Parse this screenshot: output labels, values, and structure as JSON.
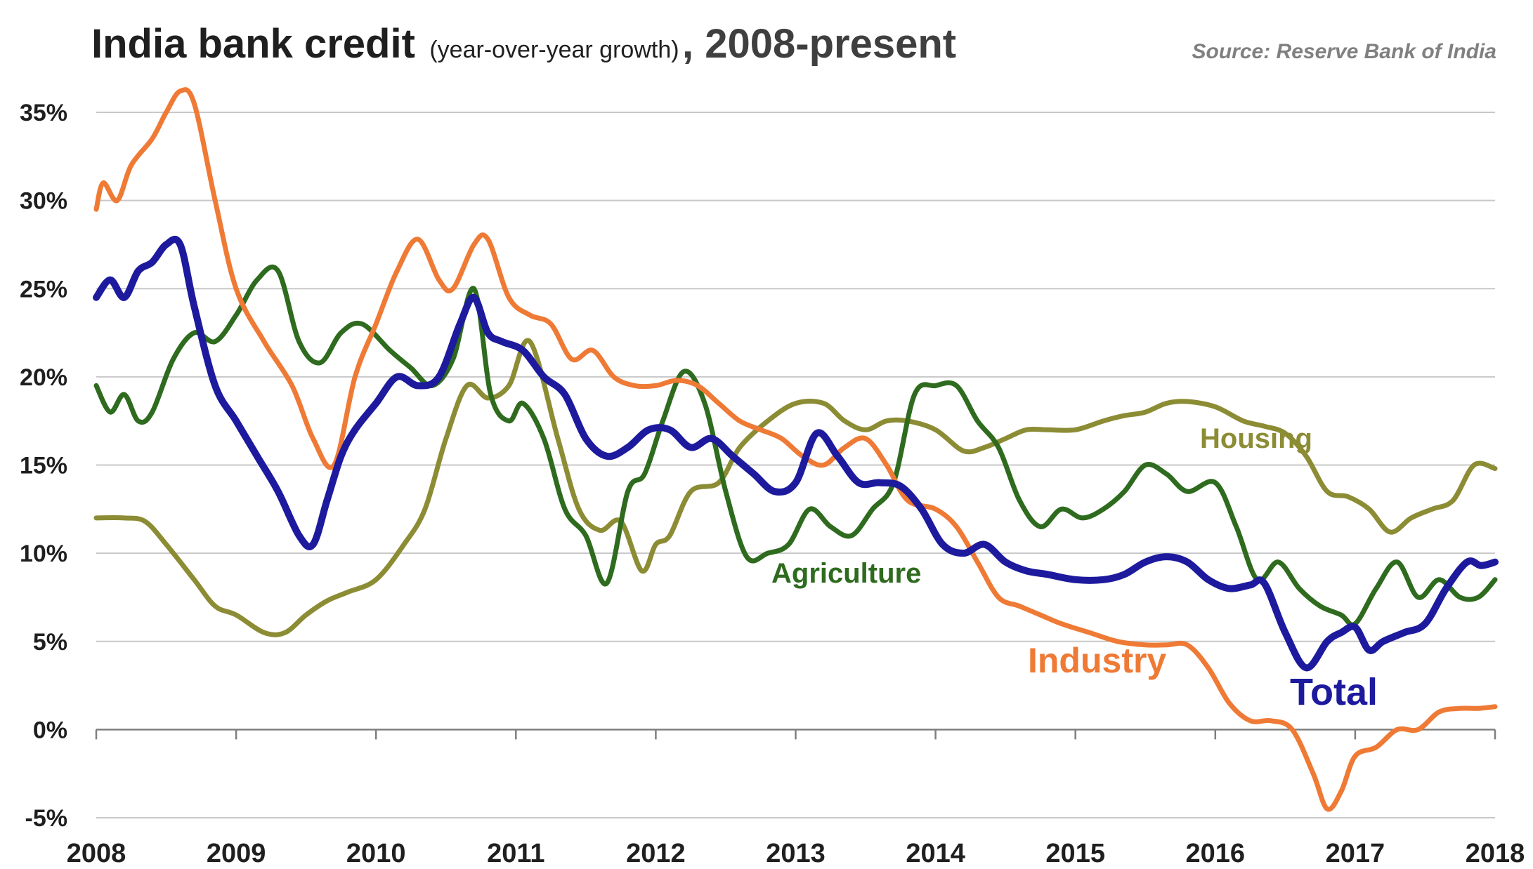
{
  "chart_data": {
    "type": "line",
    "title": "India bank credit",
    "subtitle": "(year-over-year growth)",
    "title_suffix": ", 2008-present",
    "source": "Source: Reserve Bank of India",
    "xlabel": "",
    "ylabel": "",
    "xlim": [
      2008,
      2018
    ],
    "ylim": [
      -5,
      35
    ],
    "grid": "horizontal",
    "legend": "inline labels",
    "y_ticks": [
      35,
      30,
      25,
      20,
      15,
      10,
      5,
      0,
      -5
    ],
    "y_tick_labels": [
      "35%",
      "30%",
      "25%",
      "20%",
      "15%",
      "10%",
      "5%",
      "0%",
      "-5%"
    ],
    "x_ticks": [
      2008,
      2009,
      2010,
      2011,
      2012,
      2013,
      2014,
      2015,
      2016,
      2017,
      2018
    ],
    "x_tick_labels": [
      "2008",
      "2009",
      "2010",
      "2011",
      "2012",
      "2013",
      "2014",
      "2015",
      "2016",
      "2017",
      "2018"
    ],
    "series": [
      {
        "name": "Housing",
        "color": "#8c8c35",
        "x": [
          2008.0,
          2008.2,
          2008.35,
          2008.5,
          2008.7,
          2008.85,
          2009.0,
          2009.2,
          2009.35,
          2009.5,
          2009.65,
          2009.8,
          2010.0,
          2010.2,
          2010.35,
          2010.5,
          2010.65,
          2010.8,
          2010.95,
          2011.1,
          2011.3,
          2011.45,
          2011.6,
          2011.75,
          2011.9,
          2012.0,
          2012.1,
          2012.25,
          2012.45,
          2012.6,
          2012.8,
          2013.0,
          2013.2,
          2013.35,
          2013.5,
          2013.65,
          2013.8,
          2014.0,
          2014.2,
          2014.35,
          2014.5,
          2014.65,
          2014.8,
          2015.0,
          2015.2,
          2015.35,
          2015.5,
          2015.65,
          2015.8,
          2016.0,
          2016.2,
          2016.35,
          2016.5,
          2016.65,
          2016.8,
          2016.95,
          2017.1,
          2017.25,
          2017.4,
          2017.55,
          2017.7,
          2017.85,
          2018.0
        ],
        "values": [
          12.0,
          12.0,
          11.8,
          10.5,
          8.5,
          7.0,
          6.5,
          5.5,
          5.5,
          6.5,
          7.3,
          7.8,
          8.5,
          10.5,
          12.5,
          16.5,
          19.5,
          18.8,
          19.5,
          22.0,
          16.5,
          12.5,
          11.3,
          11.8,
          9.0,
          10.5,
          11.0,
          13.5,
          14.0,
          16.0,
          17.5,
          18.5,
          18.5,
          17.5,
          17.0,
          17.5,
          17.5,
          17.0,
          15.8,
          16.0,
          16.5,
          17.0,
          17.0,
          17.0,
          17.5,
          17.8,
          18.0,
          18.5,
          18.6,
          18.3,
          17.5,
          17.2,
          16.8,
          15.5,
          13.5,
          13.2,
          12.5,
          11.2,
          12.0,
          12.5,
          13.0,
          15.0,
          14.8
        ]
      },
      {
        "name": "Agriculture",
        "color": "#2e6b1e",
        "x": [
          2008.0,
          2008.1,
          2008.2,
          2008.3,
          2008.4,
          2008.55,
          2008.7,
          2008.85,
          2009.0,
          2009.15,
          2009.3,
          2009.45,
          2009.6,
          2009.75,
          2009.9,
          2010.1,
          2010.25,
          2010.4,
          2010.55,
          2010.7,
          2010.82,
          2010.95,
          2011.05,
          2011.2,
          2011.35,
          2011.5,
          2011.65,
          2011.8,
          2011.92,
          2012.05,
          2012.2,
          2012.35,
          2012.5,
          2012.65,
          2012.8,
          2012.95,
          2013.1,
          2013.25,
          2013.4,
          2013.55,
          2013.7,
          2013.85,
          2014.0,
          2014.15,
          2014.3,
          2014.45,
          2014.6,
          2014.75,
          2014.9,
          2015.05,
          2015.2,
          2015.35,
          2015.5,
          2015.65,
          2015.8,
          2016.0,
          2016.15,
          2016.3,
          2016.45,
          2016.6,
          2016.75,
          2016.9,
          2017.0,
          2017.15,
          2017.3,
          2017.45,
          2017.6,
          2017.75,
          2017.88,
          2018.0
        ],
        "values": [
          19.5,
          18.0,
          19.0,
          17.5,
          18.0,
          21.0,
          22.5,
          22.0,
          23.5,
          25.5,
          26.0,
          22.0,
          20.8,
          22.5,
          23.0,
          21.5,
          20.5,
          19.5,
          21.0,
          25.0,
          19.0,
          17.5,
          18.5,
          16.5,
          12.5,
          11.0,
          8.3,
          13.5,
          14.5,
          17.5,
          20.3,
          18.5,
          13.5,
          9.8,
          10.0,
          10.5,
          12.5,
          11.5,
          11.0,
          12.5,
          14.0,
          19.0,
          19.5,
          19.5,
          17.5,
          16.0,
          13.0,
          11.5,
          12.5,
          12.0,
          12.5,
          13.5,
          15.0,
          14.5,
          13.5,
          14.0,
          11.5,
          8.5,
          9.5,
          8.0,
          7.0,
          6.5,
          6.0,
          8.0,
          9.5,
          7.5,
          8.5,
          7.5,
          7.5,
          8.5
        ]
      },
      {
        "name": "Industry",
        "color": "#ef7a35",
        "x": [
          2008.0,
          2008.05,
          2008.15,
          2008.25,
          2008.4,
          2008.5,
          2008.6,
          2008.7,
          2008.85,
          2009.0,
          2009.2,
          2009.4,
          2009.55,
          2009.7,
          2009.85,
          2010.0,
          2010.15,
          2010.3,
          2010.45,
          2010.55,
          2010.7,
          2010.8,
          2010.95,
          2011.1,
          2011.25,
          2011.4,
          2011.55,
          2011.7,
          2011.85,
          2012.0,
          2012.15,
          2012.3,
          2012.45,
          2012.6,
          2012.75,
          2012.9,
          2013.05,
          2013.2,
          2013.35,
          2013.5,
          2013.65,
          2013.8,
          2014.0,
          2014.15,
          2014.3,
          2014.45,
          2014.6,
          2014.75,
          2014.9,
          2015.1,
          2015.3,
          2015.5,
          2015.65,
          2015.8,
          2015.95,
          2016.1,
          2016.25,
          2016.4,
          2016.55,
          2016.7,
          2016.8,
          2016.9,
          2017.0,
          2017.15,
          2017.3,
          2017.45,
          2017.6,
          2017.75,
          2017.88,
          2018.0
        ],
        "values": [
          29.5,
          31.0,
          30.0,
          32.0,
          33.5,
          35.0,
          36.2,
          35.5,
          30.0,
          25.0,
          22.0,
          19.5,
          16.5,
          15.0,
          20.0,
          23.0,
          26.0,
          27.8,
          25.5,
          25.0,
          27.5,
          27.8,
          24.5,
          23.5,
          23.0,
          21.0,
          21.5,
          20.0,
          19.5,
          19.5,
          19.8,
          19.5,
          18.5,
          17.5,
          17.0,
          16.5,
          15.5,
          15.0,
          16.0,
          16.5,
          15.0,
          13.0,
          12.5,
          11.5,
          9.5,
          7.5,
          7.0,
          6.5,
          6.0,
          5.5,
          5.0,
          4.8,
          4.8,
          4.8,
          3.5,
          1.5,
          0.5,
          0.5,
          0.0,
          -2.5,
          -4.5,
          -3.5,
          -1.5,
          -1.0,
          0.0,
          0.0,
          1.0,
          1.2,
          1.2,
          1.3
        ]
      },
      {
        "name": "Total",
        "color": "#1d1a9e",
        "x": [
          2008.0,
          2008.1,
          2008.2,
          2008.3,
          2008.4,
          2008.5,
          2008.6,
          2008.7,
          2008.85,
          2009.0,
          2009.15,
          2009.3,
          2009.45,
          2009.55,
          2009.65,
          2009.75,
          2009.85,
          2010.0,
          2010.15,
          2010.3,
          2010.45,
          2010.6,
          2010.7,
          2010.8,
          2010.9,
          2011.05,
          2011.2,
          2011.35,
          2011.5,
          2011.65,
          2011.8,
          2011.95,
          2012.1,
          2012.25,
          2012.4,
          2012.55,
          2012.7,
          2012.85,
          2013.0,
          2013.15,
          2013.3,
          2013.45,
          2013.6,
          2013.75,
          2013.9,
          2014.05,
          2014.2,
          2014.35,
          2014.5,
          2014.65,
          2014.8,
          2015.0,
          2015.2,
          2015.35,
          2015.5,
          2015.65,
          2015.8,
          2015.95,
          2016.1,
          2016.25,
          2016.35,
          2016.5,
          2016.65,
          2016.8,
          2016.9,
          2017.0,
          2017.1,
          2017.2,
          2017.35,
          2017.5,
          2017.65,
          2017.8,
          2017.9,
          2018.0
        ],
        "values": [
          24.5,
          25.5,
          24.5,
          26.0,
          26.5,
          27.5,
          27.5,
          24.0,
          19.5,
          17.5,
          15.5,
          13.5,
          11.0,
          10.5,
          13.0,
          15.5,
          17.0,
          18.5,
          20.0,
          19.5,
          20.0,
          23.0,
          24.5,
          22.5,
          22.0,
          21.5,
          20.0,
          19.0,
          16.5,
          15.5,
          16.0,
          17.0,
          17.0,
          16.0,
          16.5,
          15.5,
          14.5,
          13.5,
          14.0,
          16.8,
          15.5,
          14.0,
          14.0,
          13.8,
          12.5,
          10.5,
          10.0,
          10.5,
          9.5,
          9.0,
          8.8,
          8.5,
          8.5,
          8.8,
          9.5,
          9.8,
          9.5,
          8.5,
          8.0,
          8.2,
          8.3,
          5.5,
          3.5,
          5.0,
          5.5,
          5.8,
          4.5,
          5.0,
          5.5,
          6.0,
          8.0,
          9.5,
          9.3,
          9.5
        ]
      }
    ],
    "annotations": [
      {
        "text": "Housing",
        "color": "#8c8c35"
      },
      {
        "text": "Agriculture",
        "color": "#2e6b1e"
      },
      {
        "text": "Industry",
        "color": "#ef7a35"
      },
      {
        "text": "Total",
        "color": "#1d1a9e"
      }
    ]
  },
  "colors": {
    "gridline": "#c8c8c8",
    "axis": "#7f7f7f",
    "text": "#1f1f1f"
  }
}
